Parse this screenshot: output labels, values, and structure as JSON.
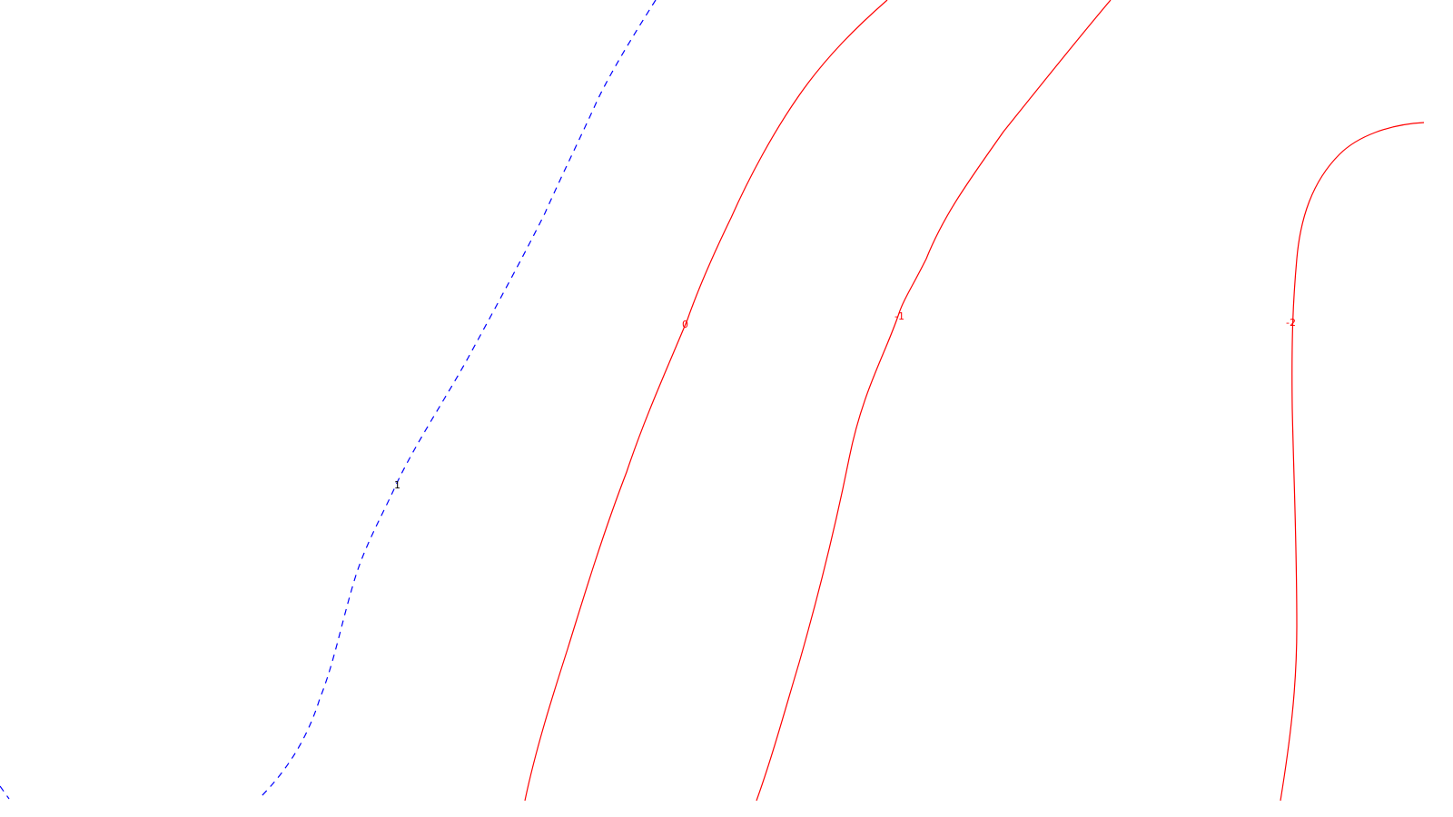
{
  "colors": {
    "background": "#ffffff",
    "positive_contour": "#0000ff",
    "zero_and_negative_contour": "#ff0000",
    "positive_label": "#000000",
    "negative_label": "#ff0000"
  },
  "contours": [
    {
      "id": "contour-1",
      "label": "1",
      "style": "dashed",
      "color": "#0000ff"
    },
    {
      "id": "contour-0",
      "label": "0",
      "style": "solid",
      "color": "#ff0000"
    },
    {
      "id": "contour-minus1",
      "label": "-1",
      "style": "solid",
      "color": "#ff0000"
    },
    {
      "id": "contour-minus2",
      "label": "-2",
      "style": "solid",
      "color": "#ff0000"
    }
  ]
}
